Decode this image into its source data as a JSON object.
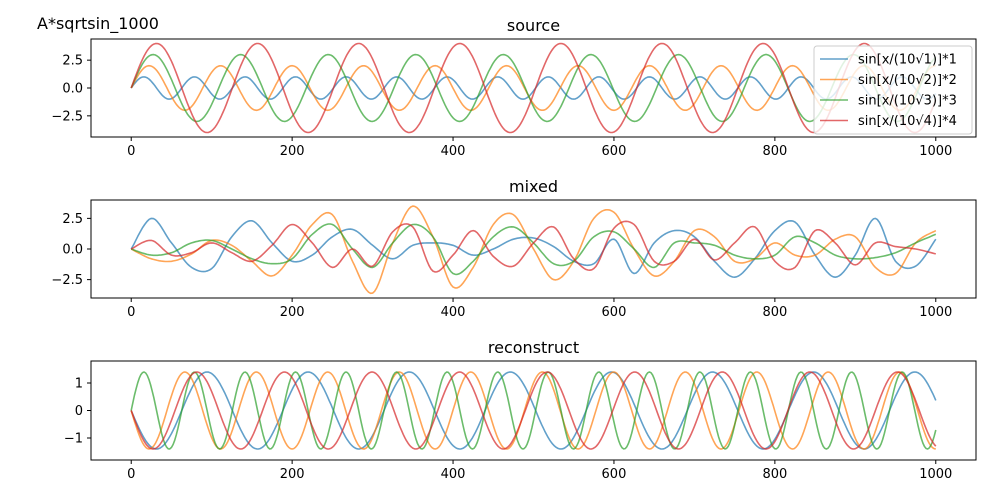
{
  "figure": {
    "suptitle": "A*sqrtsin_1000"
  },
  "chart_data": [
    {
      "type": "line",
      "title": "source",
      "xlabel": "",
      "ylabel": "",
      "xlim": [
        -50,
        1050
      ],
      "ylim": [
        -4.4,
        4.4
      ],
      "xticks": [
        0,
        200,
        400,
        600,
        800,
        1000
      ],
      "xtick_labels": [
        "0",
        "200",
        "400",
        "600",
        "800",
        "1000"
      ],
      "yticks": [
        2.5,
        0.0,
        -2.5
      ],
      "ytick_labels": [
        "2.5",
        "0.0",
        "−2.5"
      ],
      "legend_position": "top-right",
      "legend_entries": [
        "sin[x/(10√1)]*1",
        "sin[x/(10√2)]*2",
        "sin[x/(10√3)]*3",
        "sin[x/(10√4)]*4"
      ],
      "series": [
        {
          "name": "sin[x/(10√1)]*1",
          "color": "#1f77b4",
          "formula": "1*sin(x/(10*sqrt(1)))",
          "x_range": [
            0,
            1000
          ]
        },
        {
          "name": "sin[x/(10√2)]*2",
          "color": "#ff7f0e",
          "formula": "2*sin(x/(10*sqrt(2)))",
          "x_range": [
            0,
            1000
          ]
        },
        {
          "name": "sin[x/(10√3)]*3",
          "color": "#2ca02c",
          "formula": "3*sin(x/(10*sqrt(3)))",
          "x_range": [
            0,
            1000
          ]
        },
        {
          "name": "sin[x/(10√4)]*4",
          "color": "#d62728",
          "formula": "4*sin(x/(10*sqrt(4)))",
          "x_range": [
            0,
            1000
          ]
        }
      ]
    },
    {
      "type": "line",
      "title": "mixed",
      "xlabel": "",
      "ylabel": "",
      "xlim": [
        -50,
        1050
      ],
      "ylim": [
        -4.0,
        4.0
      ],
      "xticks": [
        0,
        200,
        400,
        600,
        800,
        1000
      ],
      "xtick_labels": [
        "0",
        "200",
        "400",
        "600",
        "800",
        "1000"
      ],
      "yticks": [
        2.5,
        0.0,
        -2.5
      ],
      "ytick_labels": [
        "2.5",
        "0.0",
        "−2.5"
      ],
      "series": [
        {
          "color": "#1f77b4",
          "x": [
            0,
            25,
            50,
            75,
            100,
            125,
            150,
            175,
            200,
            225,
            250,
            275,
            300,
            325,
            350,
            375,
            400,
            425,
            450,
            475,
            500,
            525,
            550,
            575,
            600,
            625,
            650,
            675,
            700,
            725,
            750,
            775,
            800,
            825,
            850,
            875,
            900,
            925,
            950,
            975,
            1000
          ],
          "y": [
            0,
            2.5,
            0.5,
            -1.5,
            -1.6,
            1.0,
            2.3,
            0.5,
            -1.0,
            -0.5,
            1.0,
            1.6,
            0.3,
            -0.8,
            0.3,
            0.5,
            0.3,
            -0.5,
            0,
            0.8,
            0.9,
            0.2,
            -1.0,
            -1.2,
            0.8,
            -2.0,
            0.5,
            1.5,
            1.0,
            -1.0,
            -2.3,
            -0.8,
            1.5,
            2.2,
            -0.5,
            -2.3,
            -0.5,
            2.5,
            -1.0,
            -1.4,
            0.8
          ]
        },
        {
          "color": "#ff7f0e",
          "x": [
            0,
            25,
            50,
            75,
            100,
            125,
            150,
            175,
            200,
            225,
            250,
            275,
            300,
            325,
            350,
            375,
            400,
            425,
            450,
            475,
            500,
            525,
            550,
            575,
            600,
            625,
            650,
            675,
            700,
            725,
            750,
            775,
            800,
            825,
            850,
            875,
            900,
            925,
            950,
            975,
            1000
          ],
          "y": [
            0,
            -0.8,
            -1.0,
            -0.4,
            0.7,
            0.3,
            -1.0,
            -2.2,
            -0.5,
            2.0,
            2.8,
            -1.0,
            -3.6,
            0.5,
            3.5,
            1.0,
            -3.1,
            -1.5,
            2.0,
            2.8,
            0,
            -2.5,
            -1.0,
            2.5,
            3.0,
            0,
            -2.2,
            -1.0,
            1.5,
            1.0,
            -1.0,
            -0.8,
            0.5,
            -0.5,
            -0.5,
            0.8,
            1.0,
            -1.5,
            -2.0,
            0.5,
            1.5
          ]
        },
        {
          "color": "#2ca02c",
          "x": [
            0,
            25,
            50,
            75,
            100,
            125,
            150,
            175,
            200,
            225,
            250,
            275,
            300,
            325,
            350,
            375,
            400,
            425,
            450,
            475,
            500,
            525,
            550,
            575,
            600,
            625,
            650,
            675,
            700,
            725,
            750,
            775,
            800,
            825,
            850,
            875,
            900,
            925,
            950,
            975,
            1000
          ],
          "y": [
            0,
            -0.5,
            -0.3,
            0.5,
            0.7,
            0,
            -0.8,
            -1.2,
            -0.8,
            1.2,
            2.0,
            0,
            -1.5,
            0.5,
            2.0,
            1.0,
            -2.0,
            -1.0,
            1.0,
            1.8,
            0.5,
            -1.2,
            -1.0,
            1.0,
            1.4,
            0,
            -1.5,
            0.5,
            0.5,
            0.3,
            -0.5,
            -0.8,
            -0.5,
            1.0,
            0.5,
            -0.5,
            -0.8,
            -0.7,
            -0.3,
            0.5,
            1.2
          ]
        },
        {
          "color": "#d62728",
          "x": [
            0,
            25,
            50,
            75,
            100,
            125,
            150,
            175,
            200,
            225,
            250,
            275,
            300,
            325,
            350,
            375,
            400,
            425,
            450,
            475,
            500,
            525,
            550,
            575,
            600,
            625,
            650,
            675,
            700,
            725,
            750,
            775,
            800,
            825,
            850,
            875,
            900,
            925,
            950,
            975,
            1000
          ],
          "y": [
            0,
            0.7,
            -0.5,
            -0.3,
            0.5,
            -0.3,
            -1.0,
            0.3,
            2.0,
            0.5,
            -1.5,
            0,
            -1.4,
            1.4,
            1.8,
            -1.8,
            -0.5,
            1.5,
            -0.6,
            -1.4,
            0.5,
            1.8,
            -0.8,
            -1.6,
            1.7,
            2.0,
            -1.0,
            -1.0,
            0.8,
            -0.9,
            0.5,
            1.8,
            -1.0,
            -1.5,
            1.5,
            0.5,
            -1.3,
            0.5,
            0.2,
            0,
            -0.4
          ]
        }
      ]
    },
    {
      "type": "line",
      "title": "reconstruct",
      "xlabel": "",
      "ylabel": "",
      "xlim": [
        -50,
        1050
      ],
      "ylim": [
        -1.8,
        1.8
      ],
      "xticks": [
        0,
        200,
        400,
        600,
        800,
        1000
      ],
      "xtick_labels": [
        "0",
        "200",
        "400",
        "600",
        "800",
        "1000"
      ],
      "yticks": [
        1,
        0,
        -1
      ],
      "ytick_labels": [
        "1",
        "0",
        "−1"
      ],
      "series": [
        {
          "color": "#1f77b4",
          "formula": "-1.4*sin(x/(10*sqrt(4)))",
          "x_range": [
            0,
            1000
          ]
        },
        {
          "color": "#ff7f0e",
          "formula": "-1.4*sin(x/(10*sqrt(2)))",
          "x_range": [
            0,
            1000
          ]
        },
        {
          "color": "#2ca02c",
          "formula": "1.4*sin(x/(10*sqrt(1)))",
          "x_range": [
            0,
            1000
          ]
        },
        {
          "color": "#d62728",
          "formula": "-1.4*sin(x/(10*sqrt(3)))",
          "x_range": [
            0,
            1000
          ]
        }
      ]
    }
  ]
}
